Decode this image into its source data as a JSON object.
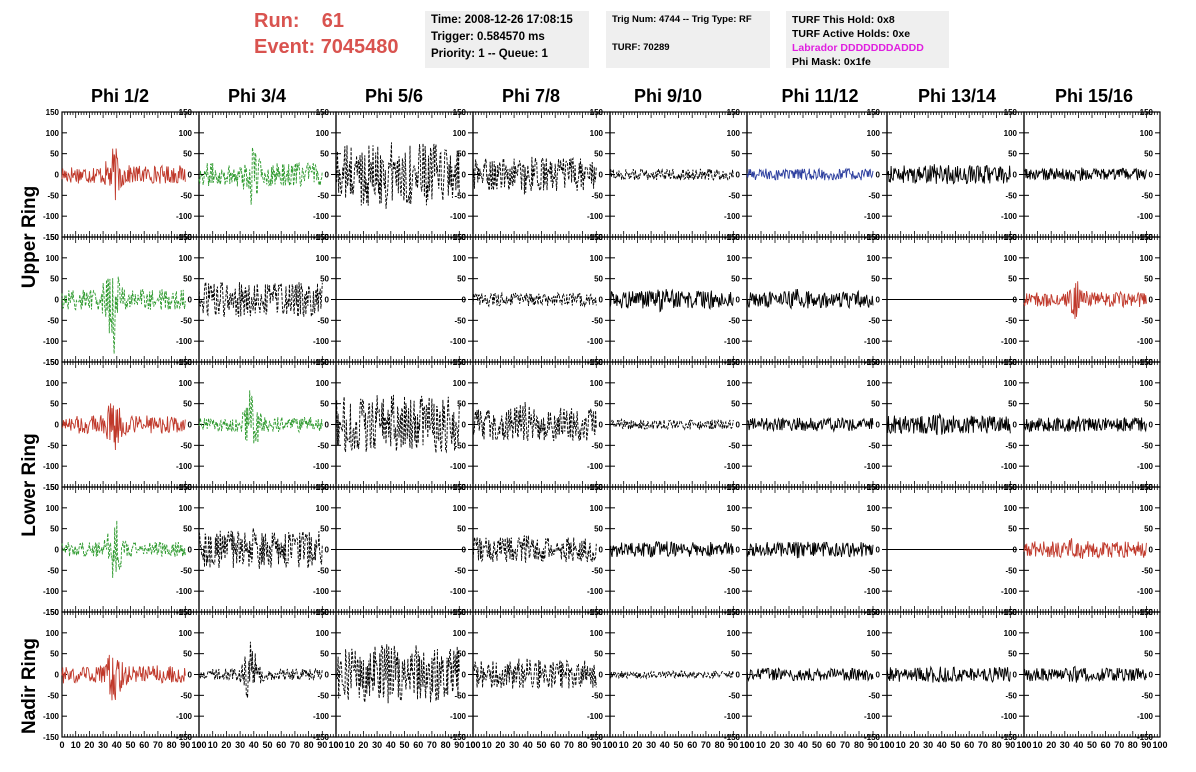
{
  "header": {
    "run_label": "Run:",
    "run_value": "61",
    "event_label": "Event:",
    "event_value": "7045480"
  },
  "info_time": {
    "time": "Time: 2008-12-26 17:08:15",
    "trigger": "Trigger: 0.584570 ms",
    "priority": "Priority: 1 -- Queue: 1"
  },
  "info_trig": {
    "trig": "Trig Num: 4744 -- Trig Type: RF",
    "turf": "TURF: 70289"
  },
  "info_turf": {
    "this_hold": "TURF This Hold: 0x8",
    "active_holds": "TURF Active Holds: 0xe",
    "labrador": "Labrador DDDDDDDADDD",
    "phi_mask": "Phi Mask: 0x1fe"
  },
  "columns": [
    "Phi 1/2",
    "Phi 3/4",
    "Phi 5/6",
    "Phi 7/8",
    "Phi 9/10",
    "Phi 11/12",
    "Phi 13/14",
    "Phi 15/16"
  ],
  "row_groups": [
    "Upper Ring",
    "Lower Ring",
    "Nadir Ring"
  ],
  "colors": {
    "red": "#c0392b",
    "green": "#2e9a2e",
    "blue": "#2c3e9e",
    "black": "#000000",
    "magenta": "#e020e0",
    "title_red": "#d9534f"
  },
  "chart_data": {
    "type": "line",
    "x_axis": {
      "range": [
        0,
        100
      ],
      "ticks": [
        0,
        10,
        20,
        30,
        40,
        50,
        60,
        70,
        80,
        90,
        100
      ]
    },
    "y_axis": {
      "range": [
        -150,
        150
      ],
      "ticks": [
        -150,
        -100,
        -50,
        0,
        50,
        100,
        150
      ]
    },
    "panels": [
      {
        "row": 0,
        "col": 0,
        "color": "red",
        "dash": false,
        "amp": 22,
        "burst": 45
      },
      {
        "row": 0,
        "col": 1,
        "color": "green",
        "dash": true,
        "amp": 28,
        "burst": 70
      },
      {
        "row": 0,
        "col": 2,
        "color": "black",
        "dash": true,
        "amp": 75,
        "burst": 10
      },
      {
        "row": 0,
        "col": 3,
        "color": "black",
        "dash": true,
        "amp": 40,
        "burst": 12
      },
      {
        "row": 0,
        "col": 4,
        "color": "black",
        "dash": true,
        "amp": 14,
        "burst": 0
      },
      {
        "row": 0,
        "col": 5,
        "color": "blue",
        "dash": false,
        "amp": 14,
        "burst": 0
      },
      {
        "row": 0,
        "col": 6,
        "color": "black",
        "dash": false,
        "amp": 22,
        "burst": 5
      },
      {
        "row": 0,
        "col": 7,
        "color": "black",
        "dash": false,
        "amp": 15,
        "burst": 5
      },
      {
        "row": 1,
        "col": 0,
        "color": "green",
        "dash": true,
        "amp": 25,
        "burst": 115
      },
      {
        "row": 1,
        "col": 1,
        "color": "black",
        "dash": true,
        "amp": 42,
        "burst": 0
      },
      {
        "row": 1,
        "col": 2,
        "color": "black",
        "dash": false,
        "amp": 0,
        "burst": 0
      },
      {
        "row": 1,
        "col": 3,
        "color": "black",
        "dash": true,
        "amp": 16,
        "burst": 0
      },
      {
        "row": 1,
        "col": 4,
        "color": "black",
        "dash": false,
        "amp": 22,
        "burst": 8
      },
      {
        "row": 1,
        "col": 5,
        "color": "black",
        "dash": false,
        "amp": 20,
        "burst": 8
      },
      {
        "row": 1,
        "col": 6,
        "color": "black",
        "dash": false,
        "amp": 0,
        "burst": 0
      },
      {
        "row": 1,
        "col": 7,
        "color": "red",
        "dash": false,
        "amp": 18,
        "burst": 30
      },
      {
        "row": 2,
        "col": 0,
        "color": "red",
        "dash": false,
        "amp": 22,
        "burst": 45
      },
      {
        "row": 2,
        "col": 1,
        "color": "green",
        "dash": true,
        "amp": 18,
        "burst": 70
      },
      {
        "row": 2,
        "col": 2,
        "color": "black",
        "dash": true,
        "amp": 70,
        "burst": 10
      },
      {
        "row": 2,
        "col": 3,
        "color": "black",
        "dash": true,
        "amp": 40,
        "burst": 15
      },
      {
        "row": 2,
        "col": 4,
        "color": "black",
        "dash": true,
        "amp": 12,
        "burst": 0
      },
      {
        "row": 2,
        "col": 5,
        "color": "black",
        "dash": false,
        "amp": 16,
        "burst": 0
      },
      {
        "row": 2,
        "col": 6,
        "color": "black",
        "dash": false,
        "amp": 22,
        "burst": 4
      },
      {
        "row": 2,
        "col": 7,
        "color": "black",
        "dash": false,
        "amp": 17,
        "burst": 4
      },
      {
        "row": 3,
        "col": 0,
        "color": "green",
        "dash": true,
        "amp": 18,
        "burst": 70
      },
      {
        "row": 3,
        "col": 1,
        "color": "black",
        "dash": true,
        "amp": 45,
        "burst": 10
      },
      {
        "row": 3,
        "col": 2,
        "color": "black",
        "dash": false,
        "amp": 0,
        "burst": 0
      },
      {
        "row": 3,
        "col": 3,
        "color": "black",
        "dash": true,
        "amp": 30,
        "burst": 5
      },
      {
        "row": 3,
        "col": 4,
        "color": "black",
        "dash": false,
        "amp": 18,
        "burst": 4
      },
      {
        "row": 3,
        "col": 5,
        "color": "black",
        "dash": false,
        "amp": 18,
        "burst": 4
      },
      {
        "row": 3,
        "col": 6,
        "color": "black",
        "dash": false,
        "amp": 0,
        "burst": 0
      },
      {
        "row": 3,
        "col": 7,
        "color": "red",
        "dash": false,
        "amp": 20,
        "burst": 10
      },
      {
        "row": 4,
        "col": 0,
        "color": "red",
        "dash": false,
        "amp": 22,
        "burst": 45
      },
      {
        "row": 4,
        "col": 1,
        "color": "black",
        "dash": true,
        "amp": 14,
        "burst": 70
      },
      {
        "row": 4,
        "col": 2,
        "color": "black",
        "dash": true,
        "amp": 70,
        "burst": 5
      },
      {
        "row": 4,
        "col": 3,
        "color": "black",
        "dash": true,
        "amp": 35,
        "burst": 8
      },
      {
        "row": 4,
        "col": 4,
        "color": "black",
        "dash": true,
        "amp": 9,
        "burst": 0
      },
      {
        "row": 4,
        "col": 5,
        "color": "black",
        "dash": false,
        "amp": 15,
        "burst": 0
      },
      {
        "row": 4,
        "col": 6,
        "color": "black",
        "dash": false,
        "amp": 18,
        "burst": 5
      },
      {
        "row": 4,
        "col": 7,
        "color": "black",
        "dash": false,
        "amp": 16,
        "burst": 5
      }
    ]
  }
}
